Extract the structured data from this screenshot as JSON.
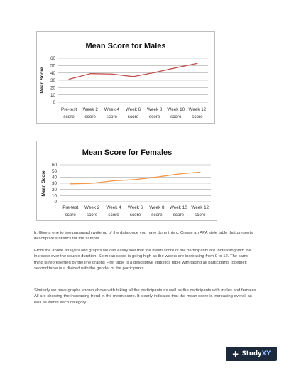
{
  "chart_data": [
    {
      "type": "line",
      "title": "Mean Score for Males",
      "ylabel": "Mean Score",
      "xlabel": "",
      "categories": [
        "Pre-test score",
        "Week 2 score",
        "Week 4 score",
        "Week 6 score",
        "Week 8 score",
        "Week 10 score",
        "Week 12 score"
      ],
      "category_lines": [
        [
          "Pre-test",
          "score"
        ],
        [
          "Week 2",
          "score"
        ],
        [
          "Week 4",
          "score"
        ],
        [
          "Week 6",
          "score"
        ],
        [
          "Week 8",
          "score"
        ],
        [
          "Week 10",
          "score"
        ],
        [
          "Week 12",
          "score"
        ]
      ],
      "yticks": [
        0,
        10,
        20,
        30,
        40,
        50,
        60
      ],
      "ylim": [
        0,
        60
      ],
      "grid": true,
      "legend": "none",
      "series": [
        {
          "color": "#c0504d",
          "values": [
            31.5,
            39,
            38.5,
            35,
            40.5,
            47,
            53
          ]
        }
      ]
    },
    {
      "type": "line",
      "title": "Mean Score for Females",
      "ylabel": "Mean Score",
      "xlabel": "",
      "categories": [
        "Pre-test score",
        "Week 2 score",
        "Week 4 score",
        "Week 6 score",
        "Week 8 score",
        "Week 10 score",
        "Week 12 score"
      ],
      "category_lines": [
        [
          "Pre-test",
          "score"
        ],
        [
          "Week 2",
          "score"
        ],
        [
          "Week 4",
          "score"
        ],
        [
          "Week 6",
          "score"
        ],
        [
          "Week 8",
          "score"
        ],
        [
          "Week 10",
          "score"
        ],
        [
          "Week 12",
          "score"
        ]
      ],
      "yticks": [
        0,
        10,
        20,
        30,
        40,
        50,
        60
      ],
      "ylim": [
        0,
        60
      ],
      "grid": true,
      "legend": "none",
      "series": [
        {
          "color": "#f79646",
          "values": [
            29,
            30,
            34,
            36,
            40,
            45,
            48
          ]
        }
      ]
    }
  ],
  "text": {
    "p1": "b. Give a one to two paragraph write up of the data once you have done this c. Create an APA style table that presents descriptive statistics for the sample.",
    "p2": "From the above analysis and graphs we can easily see that the mean score of the participants are increasing with the increase over the course duration. So mean score is going high as the weeks are increasing from 0 to 12. The same thing is represented by the line graphs First table is a descriptive statistics table with taking all participants together; second table is a divided with the gender of the participants.",
    "p3": "Similarly we have graphs shown above with taking all the participants as well as the participants with males and females. All are showing the increasing trend in the mean score. It clearly indicates that the mean score is increasing overall as well as within each category."
  },
  "brand": {
    "name_prefix": "Study",
    "name_suffix": "XY",
    "icon": "plus-icon"
  }
}
